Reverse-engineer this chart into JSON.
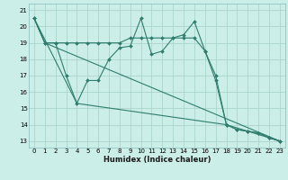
{
  "title": "",
  "xlabel": "Humidex (Indice chaleur)",
  "bg_color": "#cceee8",
  "grid_color": "#aad4cc",
  "line_color": "#2e7d6e",
  "xlim": [
    -0.5,
    23.5
  ],
  "ylim": [
    12.6,
    21.4
  ],
  "xticks": [
    0,
    1,
    2,
    3,
    4,
    5,
    6,
    7,
    8,
    9,
    10,
    11,
    12,
    13,
    14,
    15,
    16,
    17,
    18,
    19,
    20,
    21,
    22,
    23
  ],
  "yticks": [
    13,
    14,
    15,
    16,
    17,
    18,
    19,
    20,
    21
  ],
  "series1_x": [
    0,
    1,
    2,
    3,
    4,
    5,
    6,
    7,
    8,
    9,
    10,
    11,
    12,
    13,
    14,
    15,
    16,
    17,
    18,
    19,
    20,
    21,
    22,
    23
  ],
  "series1_y": [
    20.5,
    19.0,
    19.0,
    17.0,
    15.3,
    16.7,
    16.7,
    18.0,
    18.7,
    18.8,
    20.5,
    18.3,
    18.5,
    19.3,
    19.5,
    20.3,
    18.5,
    16.7,
    14.0,
    13.7,
    13.6,
    13.5,
    13.2,
    13.0
  ],
  "series2_x": [
    0,
    1,
    2,
    3,
    4,
    5,
    6,
    7,
    8,
    9,
    10,
    11,
    12,
    13,
    14,
    15,
    16,
    17,
    18,
    19,
    20,
    21,
    22,
    23
  ],
  "series2_y": [
    20.5,
    19.0,
    19.0,
    19.0,
    19.0,
    19.0,
    19.0,
    19.0,
    19.0,
    19.3,
    19.3,
    19.3,
    19.3,
    19.3,
    19.3,
    19.3,
    18.5,
    17.0,
    14.0,
    13.7,
    13.6,
    13.5,
    13.2,
    13.0
  ],
  "series3_x": [
    0,
    1,
    23
  ],
  "series3_y": [
    20.5,
    19.0,
    13.0
  ],
  "series4_x": [
    0,
    4,
    18,
    23
  ],
  "series4_y": [
    20.5,
    15.3,
    14.0,
    13.0
  ]
}
